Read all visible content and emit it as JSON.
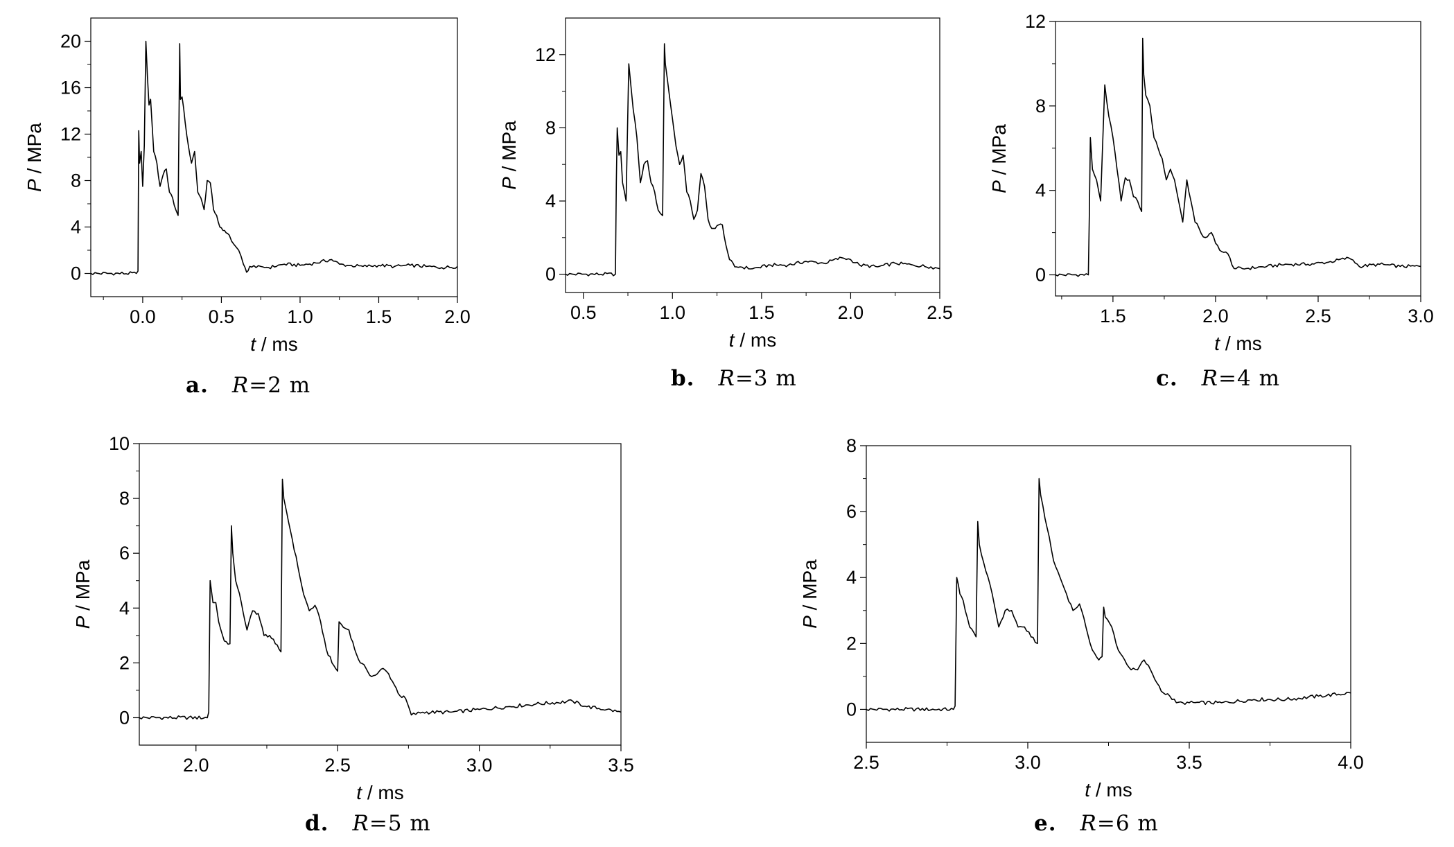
{
  "chart_data": [
    {
      "type": "line",
      "panel": "a",
      "caption_letter": "a.",
      "caption_symbol": "R",
      "caption_value": "=2 m",
      "xlabel_var": "t",
      "xlabel_unit": " / ms",
      "ylabel_var": "P",
      "ylabel_unit": " / MPa",
      "xlim": [
        -0.33,
        2.0
      ],
      "ylim": [
        -2,
        22
      ],
      "xticks": [
        0.0,
        0.5,
        1.0,
        1.5,
        2.0
      ],
      "xtick_labels": [
        "0.0",
        "0.5",
        "1.0",
        "1.5",
        "2.0"
      ],
      "yticks": [
        0,
        4,
        8,
        12,
        16,
        20
      ],
      "ytick_labels": [
        "0",
        "4",
        "8",
        "12",
        "16",
        "20"
      ],
      "series": [
        {
          "x": [
            -0.33,
            -0.04,
            -0.03,
            -0.025,
            -0.02,
            -0.01,
            0.0,
            0.01,
            0.02,
            0.03,
            0.04,
            0.05,
            0.07,
            0.09,
            0.11,
            0.13,
            0.15,
            0.17,
            0.19,
            0.21,
            0.225,
            0.235,
            0.24,
            0.25,
            0.27,
            0.29,
            0.31,
            0.33,
            0.35,
            0.37,
            0.39,
            0.41,
            0.43,
            0.45,
            0.47,
            0.49,
            0.51,
            0.53,
            0.55,
            0.58,
            0.61,
            0.64,
            0.66,
            0.68,
            0.72,
            0.75,
            0.8,
            0.9,
            1.0,
            1.1,
            1.2,
            1.25,
            1.3,
            1.4,
            1.5,
            1.6,
            1.7,
            1.8,
            1.9,
            2.0
          ],
          "y": [
            0,
            0,
            0.2,
            12.3,
            9.5,
            10.5,
            7.5,
            11,
            20,
            17,
            14.5,
            15,
            10.5,
            9.5,
            7.5,
            8.5,
            9,
            7,
            6.5,
            5.5,
            5,
            19.8,
            15,
            15.2,
            13,
            11,
            9.5,
            10.5,
            7,
            6.5,
            5.5,
            8,
            7.8,
            5.5,
            5,
            4,
            3.7,
            3.5,
            3.3,
            2.5,
            2,
            0.8,
            0.1,
            0.6,
            0.5,
            0.6,
            0.5,
            0.8,
            0.7,
            0.9,
            1.2,
            0.8,
            0.7,
            0.6,
            0.7,
            0.6,
            0.7,
            0.6,
            0.5,
            0.6
          ]
        }
      ]
    },
    {
      "type": "line",
      "panel": "b",
      "caption_letter": "b.",
      "caption_symbol": "R",
      "caption_value": "=3 m",
      "xlabel_var": "t",
      "xlabel_unit": " / ms",
      "ylabel_var": "P",
      "ylabel_unit": " / MPa",
      "xlim": [
        0.4,
        2.5
      ],
      "ylim": [
        -1,
        14
      ],
      "xticks": [
        0.5,
        1.0,
        1.5,
        2.0,
        2.5
      ],
      "xtick_labels": [
        "0.5",
        "1.0",
        "1.5",
        "2.0",
        "2.5"
      ],
      "yticks": [
        0,
        4,
        8,
        12
      ],
      "ytick_labels": [
        "0",
        "4",
        "8",
        "12"
      ],
      "series": [
        {
          "x": [
            0.4,
            0.68,
            0.685,
            0.69,
            0.7,
            0.71,
            0.72,
            0.74,
            0.755,
            0.77,
            0.78,
            0.8,
            0.82,
            0.84,
            0.86,
            0.88,
            0.9,
            0.92,
            0.945,
            0.955,
            0.96,
            0.98,
            1.0,
            1.02,
            1.04,
            1.06,
            1.08,
            1.1,
            1.12,
            1.14,
            1.16,
            1.18,
            1.2,
            1.22,
            1.24,
            1.26,
            1.28,
            1.3,
            1.32,
            1.35,
            1.38,
            1.45,
            1.55,
            1.65,
            1.75,
            1.85,
            1.95,
            2.0,
            2.05,
            2.15,
            2.25,
            2.35,
            2.45,
            2.5
          ],
          "y": [
            0,
            0,
            5,
            8,
            6.5,
            6.7,
            5,
            4,
            11.5,
            10,
            9,
            7.5,
            5,
            6,
            6.2,
            5,
            4.5,
            3.5,
            3.2,
            12.6,
            11.5,
            10,
            8.5,
            7,
            6,
            6.5,
            4.5,
            4,
            3,
            3.5,
            5.5,
            4.8,
            3,
            2.5,
            2.5,
            2.7,
            2.7,
            1.6,
            0.8,
            0.4,
            0.4,
            0.3,
            0.5,
            0.5,
            0.7,
            0.6,
            0.9,
            0.8,
            0.5,
            0.4,
            0.6,
            0.5,
            0.4,
            0.3
          ]
        }
      ]
    },
    {
      "type": "line",
      "panel": "c",
      "caption_letter": "c.",
      "caption_symbol": "R",
      "caption_value": "=4 m",
      "xlabel_var": "t",
      "xlabel_unit": " / ms",
      "ylabel_var": "P",
      "ylabel_unit": " / MPa",
      "xlim": [
        1.22,
        3.0
      ],
      "ylim": [
        -1,
        12
      ],
      "xticks": [
        1.5,
        2.0,
        2.5,
        3.0
      ],
      "xtick_labels": [
        "1.5",
        "2.0",
        "2.5",
        "3.0"
      ],
      "yticks": [
        0,
        4,
        8,
        12
      ],
      "ytick_labels": [
        "0",
        "4",
        "8",
        "12"
      ],
      "series": [
        {
          "x": [
            1.22,
            1.38,
            1.385,
            1.39,
            1.4,
            1.42,
            1.44,
            1.46,
            1.48,
            1.5,
            1.52,
            1.54,
            1.56,
            1.58,
            1.6,
            1.62,
            1.64,
            1.645,
            1.65,
            1.66,
            1.68,
            1.7,
            1.72,
            1.74,
            1.76,
            1.78,
            1.8,
            1.82,
            1.84,
            1.86,
            1.88,
            1.9,
            1.92,
            1.94,
            1.96,
            1.98,
            2.0,
            2.03,
            2.06,
            2.09,
            2.15,
            2.25,
            2.35,
            2.45,
            2.55,
            2.65,
            2.67,
            2.7,
            2.8,
            2.9,
            3.0
          ],
          "y": [
            0,
            0,
            3,
            6.5,
            5,
            4.5,
            3.5,
            9,
            7.5,
            6.5,
            5,
            3.5,
            4.6,
            4.5,
            3.7,
            3.5,
            3,
            11.2,
            9.5,
            8.5,
            8,
            6.5,
            6,
            5.5,
            4.5,
            5,
            4.5,
            3.5,
            2.5,
            4.5,
            3.5,
            2.5,
            2.2,
            1.8,
            1.8,
            2,
            1.5,
            1.1,
            1,
            0.3,
            0.3,
            0.4,
            0.5,
            0.5,
            0.6,
            0.8,
            0.7,
            0.4,
            0.5,
            0.4,
            0.4
          ]
        }
      ]
    },
    {
      "type": "line",
      "panel": "d",
      "caption_letter": "d.",
      "caption_symbol": "R",
      "caption_value": "=5 m",
      "xlabel_var": "t",
      "xlabel_unit": " / ms",
      "ylabel_var": "P",
      "ylabel_unit": " / MPa",
      "xlim": [
        1.8,
        3.5
      ],
      "ylim": [
        -1,
        10
      ],
      "xticks": [
        2.0,
        2.5,
        3.0,
        3.5
      ],
      "xtick_labels": [
        "2.0",
        "2.5",
        "3.0",
        "3.5"
      ],
      "yticks": [
        0,
        2,
        4,
        6,
        8,
        10
      ],
      "ytick_labels": [
        "0",
        "2",
        "4",
        "6",
        "8",
        "10"
      ],
      "series": [
        {
          "x": [
            1.8,
            2.04,
            2.045,
            2.05,
            2.06,
            2.07,
            2.08,
            2.1,
            2.12,
            2.125,
            2.13,
            2.14,
            2.16,
            2.18,
            2.2,
            2.22,
            2.24,
            2.26,
            2.28,
            2.3,
            2.305,
            2.31,
            2.32,
            2.34,
            2.36,
            2.38,
            2.4,
            2.42,
            2.44,
            2.46,
            2.48,
            2.5,
            2.505,
            2.52,
            2.54,
            2.56,
            2.58,
            2.6,
            2.62,
            2.64,
            2.66,
            2.68,
            2.7,
            2.72,
            2.74,
            2.76,
            2.8,
            2.9,
            3.0,
            3.1,
            3.2,
            3.33,
            3.38,
            3.45,
            3.5
          ],
          "y": [
            0,
            0,
            0.2,
            5,
            4.2,
            4.2,
            3.5,
            2.8,
            2.7,
            7,
            6,
            5,
            4.2,
            3.2,
            3.9,
            3.8,
            3,
            3,
            2.7,
            2.4,
            8.7,
            8,
            7.5,
            6.5,
            5.5,
            4.5,
            3.9,
            4.1,
            3.5,
            2.5,
            2,
            1.7,
            3.5,
            3.3,
            3.2,
            2.5,
            2,
            1.8,
            1.5,
            1.6,
            1.8,
            1.6,
            1.2,
            0.8,
            0.7,
            0.1,
            0.2,
            0.2,
            0.3,
            0.4,
            0.5,
            0.6,
            0.4,
            0.3,
            0.2
          ]
        }
      ]
    },
    {
      "type": "line",
      "panel": "e",
      "caption_letter": "e.",
      "caption_symbol": "R",
      "caption_value": "=6 m",
      "xlabel_var": "t",
      "xlabel_unit": " / ms",
      "ylabel_var": "P",
      "ylabel_unit": " / MPa",
      "xlim": [
        2.5,
        4.0
      ],
      "ylim": [
        -1,
        8
      ],
      "xticks": [
        2.5,
        3.0,
        3.5,
        4.0
      ],
      "xtick_labels": [
        "2.5",
        "3.0",
        "3.5",
        "4.0"
      ],
      "yticks": [
        0,
        2,
        4,
        6,
        8
      ],
      "ytick_labels": [
        "0",
        "2",
        "4",
        "6",
        "8"
      ],
      "series": [
        {
          "x": [
            2.5,
            2.77,
            2.775,
            2.78,
            2.79,
            2.8,
            2.82,
            2.84,
            2.845,
            2.85,
            2.87,
            2.89,
            2.91,
            2.93,
            2.95,
            2.97,
            2.99,
            3.01,
            3.03,
            3.035,
            3.04,
            3.06,
            3.08,
            3.1,
            3.12,
            3.14,
            3.16,
            3.18,
            3.2,
            3.22,
            3.23,
            3.235,
            3.24,
            3.26,
            3.28,
            3.3,
            3.32,
            3.34,
            3.36,
            3.38,
            3.4,
            3.42,
            3.44,
            3.46,
            3.48,
            3.5,
            3.6,
            3.7,
            3.8,
            3.9,
            4.0
          ],
          "y": [
            0,
            0,
            0.1,
            4,
            3.5,
            3.3,
            2.5,
            2.2,
            5.7,
            5,
            4.2,
            3.5,
            2.5,
            3,
            3,
            2.5,
            2.5,
            2.2,
            2,
            7,
            6.5,
            5.5,
            4.5,
            4,
            3.5,
            3,
            3.2,
            2.5,
            1.8,
            1.5,
            1.6,
            3.1,
            2.8,
            2.5,
            1.8,
            1.5,
            1.2,
            1.2,
            1.5,
            1.2,
            0.8,
            0.5,
            0.4,
            0.2,
            0.2,
            0.2,
            0.2,
            0.3,
            0.3,
            0.4,
            0.5
          ]
        }
      ]
    }
  ]
}
